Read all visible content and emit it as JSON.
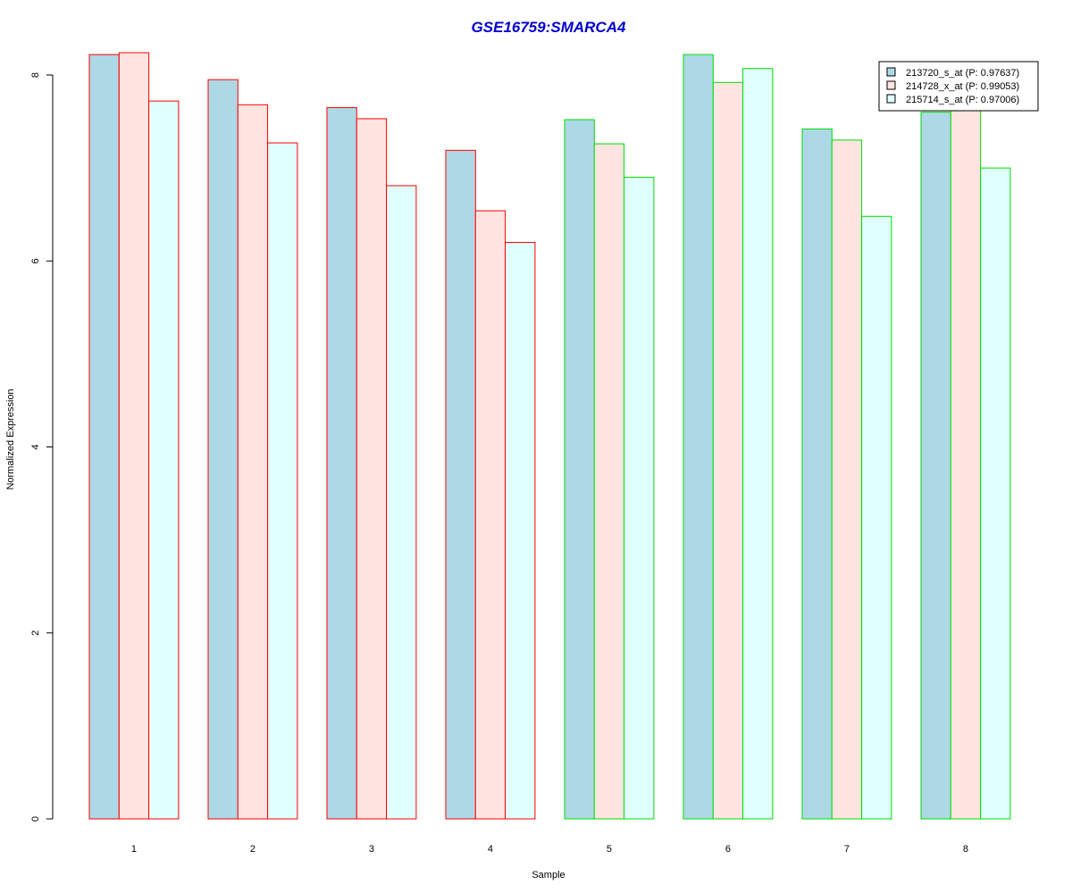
{
  "chart_data": {
    "type": "bar",
    "title": "GSE16759:SMARCA4",
    "xlabel": "Sample",
    "ylabel": "Normalized Expression",
    "categories": [
      "1",
      "2",
      "3",
      "4",
      "5",
      "6",
      "7",
      "8"
    ],
    "ylim": [
      0,
      8.2
    ],
    "yticks": [
      "0",
      "2",
      "4",
      "6",
      "8"
    ],
    "series": [
      {
        "name": "213720_s_at (P: 0.97637)",
        "fill": "#add8e6",
        "values": [
          8.22,
          7.95,
          7.65,
          7.19,
          7.52,
          8.22,
          7.42,
          7.6
        ]
      },
      {
        "name": "214728_x_at (P: 0.99053)",
        "fill": "#ffe4e1",
        "values": [
          8.24,
          7.68,
          7.53,
          6.54,
          7.26,
          7.92,
          7.3,
          7.64
        ]
      },
      {
        "name": "215714_s_at (P: 0.97006)",
        "fill": "#e0ffff",
        "values": [
          7.72,
          7.27,
          6.81,
          6.2,
          6.9,
          8.07,
          6.48,
          7.0
        ]
      }
    ],
    "group_border_colors": [
      "#ff0000",
      "#ff0000",
      "#ff0000",
      "#ff0000",
      "#00dd00",
      "#00dd00",
      "#00dd00",
      "#00dd00"
    ],
    "title_color": "#0000cc",
    "legend_position": "top-right",
    "grid": false
  }
}
